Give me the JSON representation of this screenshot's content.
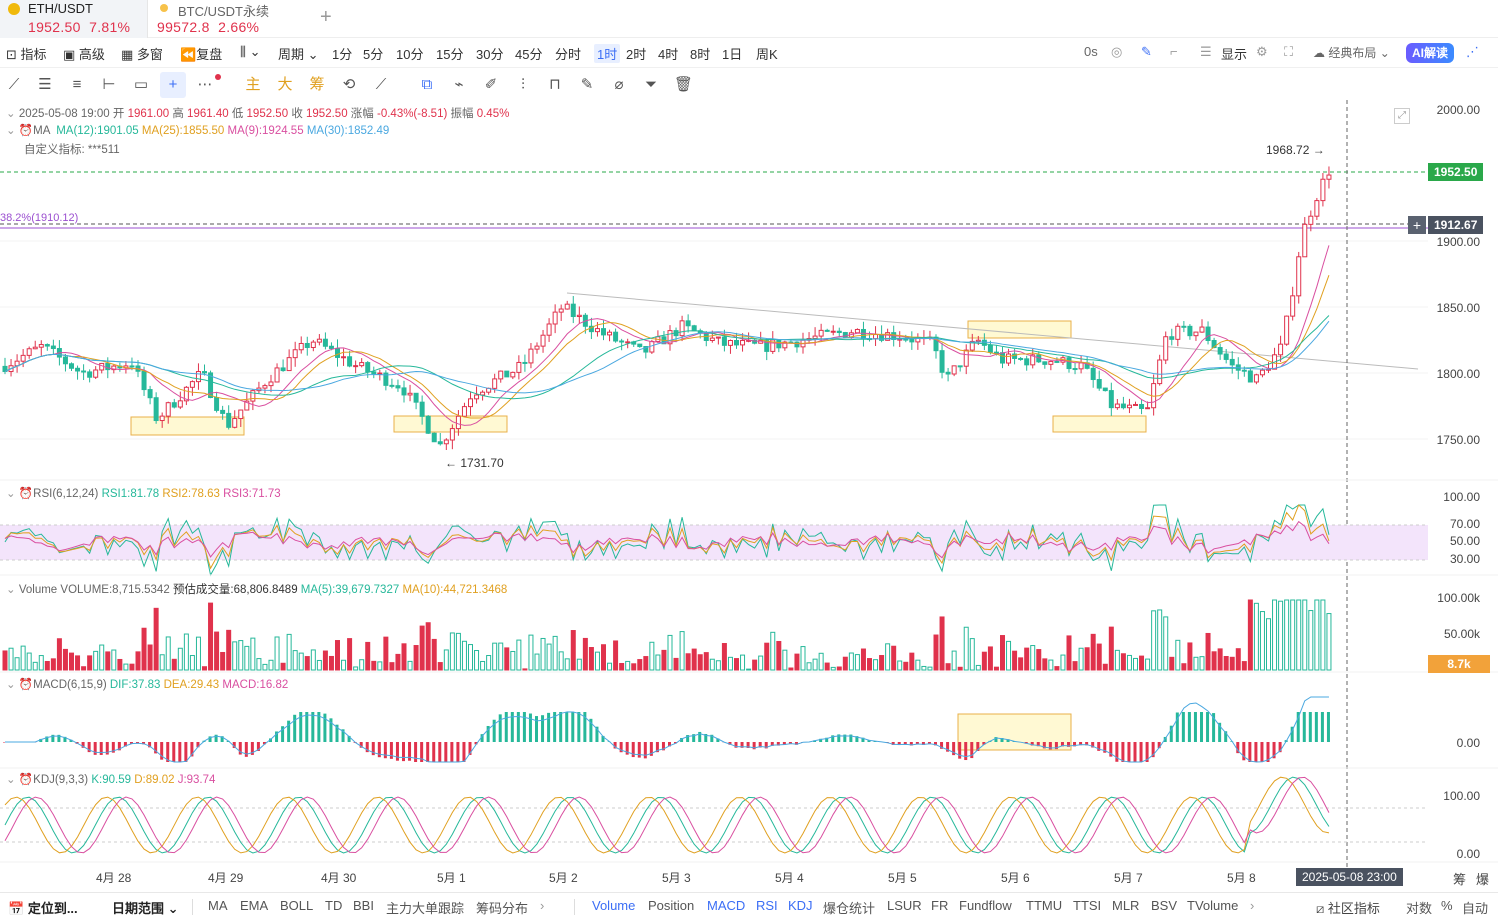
{
  "tabs": [
    {
      "symbol": "ETH/USDT",
      "price": "1952.50",
      "change": "7.81%"
    },
    {
      "symbol": "BTC/USDT永续",
      "price": "99572.8",
      "change": "2.66%"
    }
  ],
  "add_tab_label": "+",
  "toolbar": {
    "indicators": "指标",
    "advanced": "高级",
    "multi_window": "多窗",
    "replay": "复盘",
    "period": "周期",
    "intervals": [
      "1分",
      "5分",
      "10分",
      "15分",
      "30分",
      "45分",
      "分时",
      "1时",
      "2时",
      "4时",
      "8时",
      "1日",
      "周K"
    ],
    "selected_interval": "1时",
    "countdown": "0s",
    "display": "显示",
    "layout": "经典布局",
    "ai": "AI解读"
  },
  "drawing_tools": {
    "main": "主",
    "big": "大",
    "chips": "筹"
  },
  "ohlc": {
    "date": "2025-05-08 19:00",
    "open_label": "开",
    "open": "1961.00",
    "high_label": "高",
    "high": "1961.40",
    "low_label": "低",
    "low": "1952.50",
    "close_label": "收",
    "close": "1952.50",
    "chg_label": "涨幅",
    "chg": "-0.43%(-8.51)",
    "amp_label": "振幅",
    "amp": "0.45%"
  },
  "ma": {
    "name": "MA",
    "ma12": "MA(12):1901.05",
    "ma25": "MA(25):1855.50",
    "ma9": "MA(9):1924.55",
    "ma30": "MA(30):1852.49",
    "custom": "自定义指标: ***511"
  },
  "fib_label": "38.2%(1910.12)",
  "price_tags": {
    "current": "1952.50",
    "cross": "1912.67",
    "high": "1968.72",
    "low": "1731.70",
    "volume": "8.7k",
    "time": "2025-05-08 23:00"
  },
  "price_axis": [
    "2000.00",
    "1900.00",
    "1850.00",
    "1800.00",
    "1750.00"
  ],
  "rsi": {
    "name": "RSI(6,12,24)",
    "rsi1": "RSI1:81.78",
    "rsi2": "RSI2:78.63",
    "rsi3": "RSI3:71.73",
    "axis": [
      "100.00",
      "70.00",
      "50.00",
      "30.00"
    ]
  },
  "volume": {
    "name": "Volume",
    "vol": "VOLUME:8,715.5342",
    "est": "预估成交量:68,806.8489",
    "ma5": "MA(5):39,679.7327",
    "ma10": "MA(10):44,721.3468",
    "axis": [
      "100.00k",
      "50.00k"
    ]
  },
  "macd": {
    "name": "MACD(6,15,9)",
    "dif": "DIF:37.83",
    "dea": "DEA:29.43",
    "macd": "MACD:16.82",
    "axis": [
      "0.00"
    ]
  },
  "kdj": {
    "name": "KDJ(9,3,3)",
    "k": "K:90.59",
    "d": "D:89.02",
    "j": "J:93.74",
    "axis": [
      "100.00",
      "0.00"
    ]
  },
  "x_axis": [
    "4月 28",
    "4月 29",
    "4月 30",
    "5月 1",
    "5月 2",
    "5月 3",
    "5月 4",
    "5月 5",
    "5月 6",
    "5月 7",
    "5月 8"
  ],
  "x_axis_right": [
    "筹",
    "爆"
  ],
  "bottom": {
    "locate": "定位到...",
    "range": "日期范围",
    "left_indicators": [
      "MA",
      "EMA",
      "BOLL",
      "TD",
      "BBI",
      "主力大单跟踪",
      "筹码分布"
    ],
    "right_indicators": [
      "Volume",
      "Position",
      "MACD",
      "RSI",
      "KDJ",
      "爆仓统计",
      "LSUR",
      "FR",
      "Fundflow",
      "TTMU",
      "TTSI",
      "MLR",
      "BSV",
      "TVolume"
    ],
    "community": "社区指标",
    "log": "对数",
    "pct": "%",
    "auto": "自动"
  },
  "colors": {
    "up": "#e0324c",
    "down": "#26b89a",
    "accent": "#3b6ef5",
    "ma12": "#e0a020",
    "ma25": "#26b89a",
    "ma9": "#d94fa0",
    "ma30": "#4aa8e0"
  }
}
